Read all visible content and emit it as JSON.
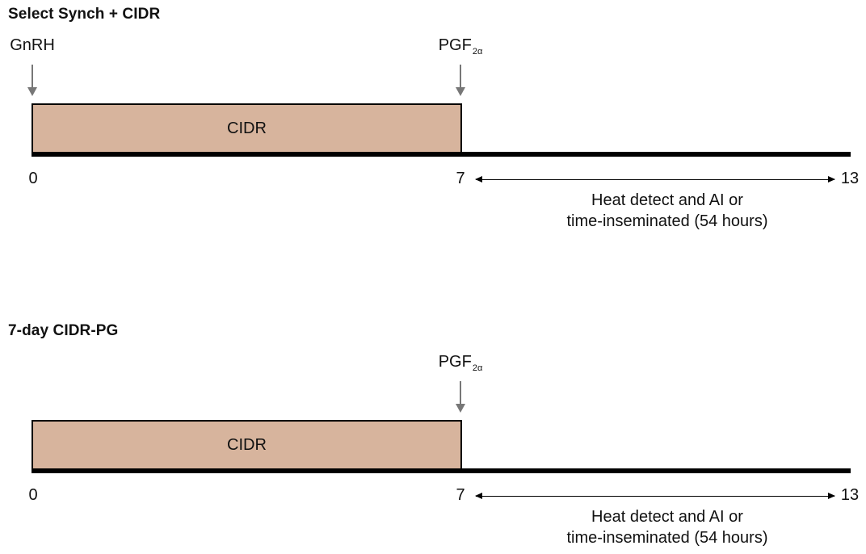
{
  "panels": [
    {
      "title": "Select Synch + CIDR",
      "markers": [
        {
          "label": "GnRH",
          "sub": "",
          "day": 0
        },
        {
          "label": "PGF",
          "sub": "2α",
          "day": 7
        }
      ],
      "cidr": {
        "label": "CIDR",
        "start_day": 0,
        "end_day": 7
      },
      "ticks": [
        "0",
        "7",
        "13"
      ],
      "range": {
        "from_day": 7,
        "to_day": 13
      },
      "caption": [
        "Heat detect and AI or",
        "time-inseminated (54 hours)"
      ]
    },
    {
      "title": "7-day CIDR-PG",
      "markers": [
        {
          "label": "PGF",
          "sub": "2α",
          "day": 7
        }
      ],
      "cidr": {
        "label": "CIDR",
        "start_day": 0,
        "end_day": 7
      },
      "ticks": [
        "0",
        "7",
        "13"
      ],
      "range": {
        "from_day": 7,
        "to_day": 13
      },
      "caption": [
        "Heat detect and AI or",
        "time-inseminated (54 hours)"
      ]
    }
  ]
}
